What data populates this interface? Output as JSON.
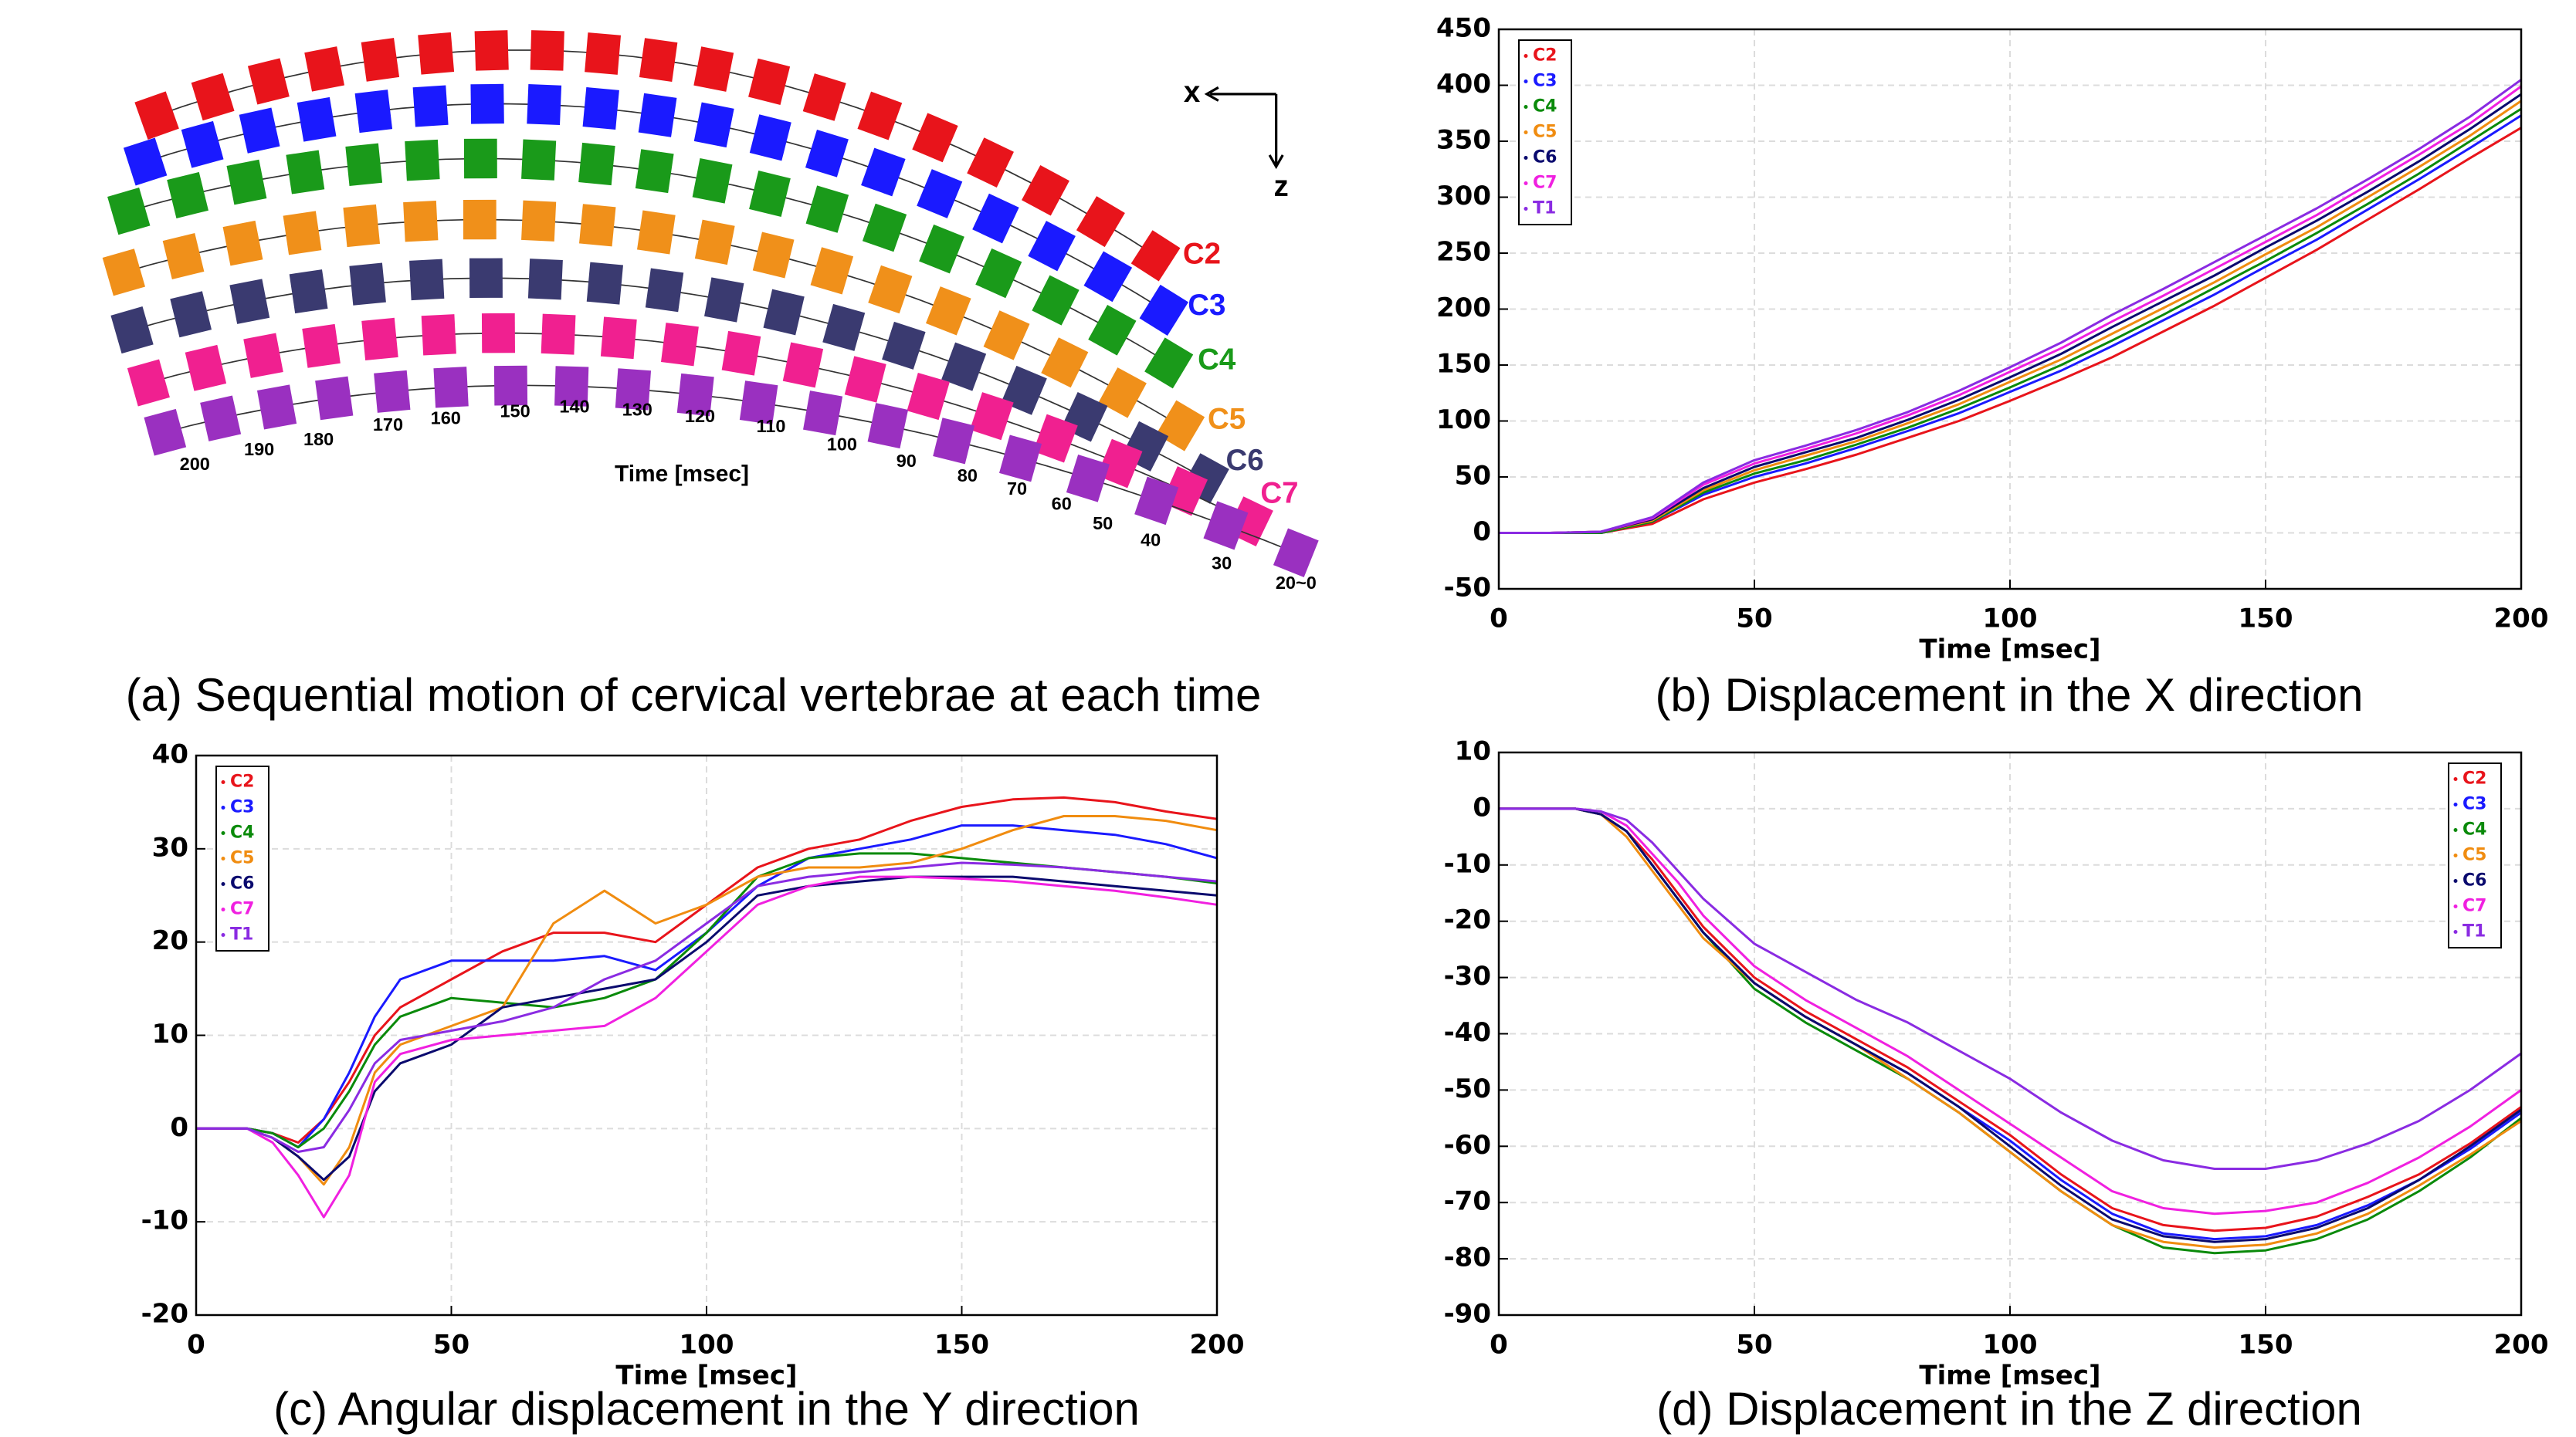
{
  "diagram": {
    "axis_x": "x",
    "axis_z": "z",
    "row_labels": [
      "C2",
      "C3",
      "C4",
      "C5",
      "C6",
      "C7"
    ],
    "time_labels": [
      "200",
      "190",
      "180",
      "170",
      "160",
      "150",
      "140",
      "130",
      "120",
      "110",
      "100",
      "90",
      "80",
      "70",
      "60",
      "50",
      "40",
      "30",
      "20~0"
    ],
    "time_axis_label": "Time [msec]",
    "caption": "(a) Sequential motion of cervical vertebrae at each time"
  },
  "chart_data": [
    {
      "type": "line",
      "caption": "(b) Displacement in the X direction",
      "xlabel": "Time [msec]",
      "x": [
        0,
        10,
        20,
        30,
        40,
        50,
        60,
        70,
        80,
        90,
        100,
        110,
        120,
        130,
        140,
        150,
        160,
        170,
        180,
        190,
        200
      ],
      "xlim": [
        0,
        200
      ],
      "xticks": [
        0,
        50,
        100,
        150,
        200
      ],
      "ylim": [
        -50,
        450
      ],
      "yticks": [
        -50,
        0,
        50,
        100,
        150,
        200,
        250,
        300,
        350,
        400,
        450
      ],
      "grid": true,
      "legend": "upper left",
      "series": [
        {
          "name": "C2",
          "color": "#e8141b",
          "values": [
            0,
            0,
            0,
            8,
            30,
            45,
            57,
            70,
            85,
            100,
            118,
            137,
            157,
            180,
            203,
            228,
            253,
            280,
            307,
            335,
            362
          ]
        },
        {
          "name": "C3",
          "color": "#1a1aff",
          "values": [
            0,
            0,
            0,
            10,
            34,
            50,
            62,
            76,
            91,
            107,
            126,
            145,
            167,
            190,
            213,
            238,
            262,
            289,
            316,
            344,
            373
          ]
        },
        {
          "name": "C4",
          "color": "#0a8a0a",
          "values": [
            0,
            0,
            0,
            10,
            36,
            53,
            65,
            79,
            94,
            111,
            130,
            150,
            172,
            195,
            219,
            243,
            268,
            294,
            321,
            350,
            379
          ]
        },
        {
          "name": "C5",
          "color": "#f08c10",
          "values": [
            0,
            0,
            1,
            11,
            38,
            56,
            69,
            82,
            98,
            115,
            135,
            155,
            178,
            201,
            224,
            249,
            273,
            300,
            327,
            355,
            386
          ]
        },
        {
          "name": "C6",
          "color": "#0a0a6e",
          "values": [
            0,
            0,
            1,
            12,
            40,
            59,
            72,
            85,
            101,
            119,
            139,
            160,
            184,
            207,
            230,
            255,
            279,
            305,
            332,
            361,
            392
          ]
        },
        {
          "name": "C7",
          "color": "#f020e0",
          "values": [
            0,
            0,
            1,
            13,
            43,
            62,
            75,
            89,
            105,
            123,
            144,
            165,
            189,
            212,
            236,
            260,
            284,
            311,
            338,
            366,
            399
          ]
        },
        {
          "name": "T1",
          "color": "#8a2be2",
          "values": [
            0,
            0,
            1,
            14,
            45,
            65,
            78,
            92,
            108,
            127,
            148,
            170,
            195,
            218,
            242,
            266,
            290,
            316,
            343,
            372,
            405
          ]
        }
      ]
    },
    {
      "type": "line",
      "caption": "(c) Angular displacement in the Y direction",
      "xlabel": "Time [msec]",
      "x": [
        0,
        10,
        15,
        20,
        25,
        30,
        35,
        40,
        50,
        60,
        70,
        80,
        90,
        100,
        110,
        120,
        130,
        140,
        150,
        160,
        170,
        180,
        190,
        200
      ],
      "xlim": [
        0,
        200
      ],
      "xticks": [
        0,
        50,
        100,
        150,
        200
      ],
      "ylim": [
        -20,
        40
      ],
      "yticks": [
        -20,
        -10,
        0,
        10,
        20,
        30,
        40
      ],
      "grid": true,
      "legend": "upper left",
      "series": [
        {
          "name": "C2",
          "color": "#e8141b",
          "values": [
            0,
            0,
            -0.5,
            -1.5,
            1,
            5,
            10,
            13,
            16,
            19,
            21,
            21,
            20,
            24,
            28,
            30,
            31,
            33,
            34.5,
            35.3,
            35.5,
            35,
            34,
            33.2
          ]
        },
        {
          "name": "C3",
          "color": "#1a1aff",
          "values": [
            0,
            0,
            -0.5,
            -2,
            1,
            6,
            12,
            16,
            18,
            18,
            18,
            18.5,
            17,
            21,
            26,
            29,
            30,
            31,
            32.5,
            32.5,
            32,
            31.5,
            30.5,
            29
          ]
        },
        {
          "name": "C4",
          "color": "#0a8a0a",
          "values": [
            0,
            0,
            -0.5,
            -2,
            0,
            4,
            9,
            12,
            14,
            13.5,
            13,
            14,
            16,
            21,
            27,
            29,
            29.5,
            29.5,
            29,
            28.5,
            28,
            27.5,
            27,
            26.3
          ]
        },
        {
          "name": "C5",
          "color": "#f08c10",
          "values": [
            0,
            0,
            -1,
            -3,
            -6,
            -2,
            6,
            9,
            11,
            13,
            22,
            25.5,
            22,
            24,
            27,
            28,
            28,
            28.5,
            30,
            32,
            33.5,
            33.5,
            33,
            32
          ]
        },
        {
          "name": "C6",
          "color": "#0a0a6e",
          "values": [
            0,
            0,
            -1,
            -3,
            -5.5,
            -3,
            4,
            7,
            9,
            13,
            14,
            15,
            16,
            20,
            25,
            26,
            26.5,
            27,
            27,
            27,
            26.5,
            26,
            25.5,
            25
          ]
        },
        {
          "name": "C7",
          "color": "#f020e0",
          "values": [
            0,
            0,
            -1.5,
            -5,
            -9.5,
            -5,
            5,
            8,
            9.5,
            10,
            10.5,
            11,
            14,
            19,
            24,
            26,
            27,
            27,
            26.8,
            26.5,
            26,
            25.5,
            24.8,
            24
          ]
        },
        {
          "name": "T1",
          "color": "#8a2be2",
          "values": [
            0,
            0,
            -1,
            -2.5,
            -2,
            2,
            7,
            9.5,
            10.5,
            11.5,
            13,
            16,
            18,
            22,
            26,
            27,
            27.5,
            28,
            28.5,
            28.3,
            28,
            27.5,
            27,
            26.5
          ]
        }
      ]
    },
    {
      "type": "line",
      "caption": "(d) Displacement in the Z direction",
      "xlabel": "Time [msec]",
      "x": [
        0,
        10,
        15,
        20,
        25,
        30,
        35,
        40,
        50,
        60,
        70,
        80,
        90,
        100,
        110,
        120,
        130,
        140,
        150,
        160,
        170,
        180,
        190,
        200
      ],
      "xlim": [
        0,
        200
      ],
      "xticks": [
        0,
        50,
        100,
        150,
        200
      ],
      "ylim": [
        -90,
        10
      ],
      "yticks": [
        -90,
        -80,
        -70,
        -60,
        -50,
        -40,
        -30,
        -20,
        -10,
        0,
        10
      ],
      "grid": true,
      "legend": "upper right",
      "series": [
        {
          "name": "C2",
          "color": "#e8141b",
          "values": [
            0,
            0,
            0,
            -1,
            -4,
            -9,
            -15,
            -21,
            -30,
            -36,
            -41,
            -46,
            -52,
            -58,
            -65,
            -71,
            -74,
            -75,
            -74.5,
            -72.5,
            -69,
            -65,
            -59.5,
            -53
          ]
        },
        {
          "name": "C3",
          "color": "#1a1aff",
          "values": [
            0,
            0,
            0,
            -1,
            -4,
            -10,
            -16,
            -22,
            -31,
            -37,
            -42,
            -47,
            -53,
            -59,
            -66,
            -72,
            -75.5,
            -76.5,
            -76,
            -74,
            -70.5,
            -66,
            -60.5,
            -54
          ]
        },
        {
          "name": "C4",
          "color": "#0a8a0a",
          "values": [
            0,
            0,
            0,
            -1,
            -4,
            -10,
            -16,
            -22,
            -32,
            -38,
            -43,
            -48,
            -54,
            -61,
            -68,
            -74,
            -78,
            -79,
            -78.5,
            -76.5,
            -73,
            -68,
            -62,
            -55
          ]
        },
        {
          "name": "C5",
          "color": "#f08c10",
          "values": [
            0,
            0,
            0,
            -1,
            -5,
            -11,
            -17,
            -23,
            -31,
            -37,
            -42,
            -48,
            -54,
            -61,
            -68,
            -74,
            -77,
            -78,
            -77.5,
            -75.5,
            -72,
            -67,
            -61.5,
            -55.5
          ]
        },
        {
          "name": "C6",
          "color": "#0a0a6e",
          "values": [
            0,
            0,
            0,
            -1,
            -4,
            -10,
            -16,
            -22,
            -31,
            -37,
            -42,
            -47,
            -53,
            -60,
            -67,
            -73,
            -76,
            -77,
            -76.5,
            -74.5,
            -71,
            -66,
            -60,
            -53.5
          ]
        },
        {
          "name": "C7",
          "color": "#f020e0",
          "values": [
            0,
            0,
            0,
            -0.5,
            -3,
            -8,
            -13,
            -19,
            -28,
            -34,
            -39,
            -44,
            -50,
            -56,
            -62,
            -68,
            -71,
            -72,
            -71.5,
            -70,
            -66.5,
            -62,
            -56.5,
            -50
          ]
        },
        {
          "name": "T1",
          "color": "#8a2be2",
          "values": [
            0,
            0,
            0,
            -0.5,
            -2,
            -6,
            -11,
            -16,
            -24,
            -29,
            -34,
            -38,
            -43,
            -48,
            -54,
            -59,
            -62.5,
            -64,
            -64,
            -62.5,
            -59.5,
            -55.5,
            -50,
            -43.5
          ]
        }
      ]
    }
  ]
}
